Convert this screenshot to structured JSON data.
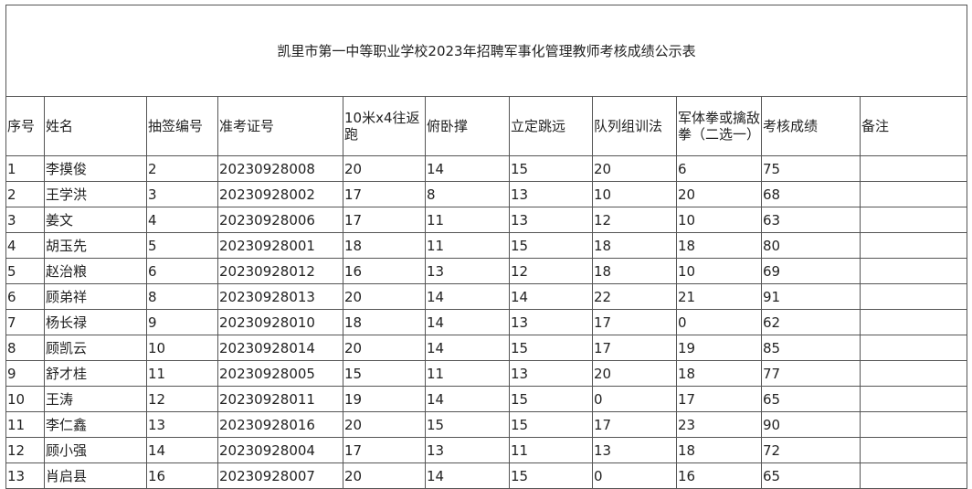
{
  "table": {
    "title": "凯里市第一中等职业学校2023年招聘军事化管理教师考核成绩公示表",
    "headers": [
      "序号",
      "姓名",
      "抽签编号",
      "准考证号",
      "10米x4往返跑",
      "俯卧撑",
      "立定跳远",
      "队列组训法",
      "军体拳或擒敌拳（二选一）",
      "考核成绩",
      "备注"
    ],
    "rows": [
      [
        "1",
        "李摸俊",
        "2",
        "20230928008",
        "20",
        "14",
        "15",
        "20",
        "6",
        "75"
      ],
      [
        "2",
        "王学洪",
        "3",
        "20230928002",
        "17",
        "8",
        "13",
        "10",
        "20",
        "68"
      ],
      [
        "3",
        "姜文",
        "4",
        "20230928006",
        "17",
        "11",
        "13",
        "12",
        "10",
        "63"
      ],
      [
        "4",
        "胡玉先",
        "5",
        "20230928001",
        "18",
        "11",
        "15",
        "18",
        "18",
        "80"
      ],
      [
        "5",
        "赵治粮",
        "6",
        "20230928012",
        "16",
        "13",
        "12",
        "18",
        "10",
        "69"
      ],
      [
        "6",
        "顾弟祥",
        "8",
        "20230928013",
        "20",
        "14",
        "14",
        "22",
        "21",
        "91"
      ],
      [
        "7",
        "杨长禄",
        "9",
        "20230928010",
        "18",
        "14",
        "13",
        "17",
        "0",
        "62"
      ],
      [
        "8",
        "顾凯云",
        "10",
        "20230928014",
        "20",
        "14",
        "15",
        "17",
        "19",
        "85"
      ],
      [
        "9",
        "舒才桂",
        "11",
        "20230928005",
        "15",
        "11",
        "13",
        "20",
        "18",
        "77"
      ],
      [
        "10",
        "王涛",
        "12",
        "20230928011",
        "19",
        "14",
        "15",
        "0",
        "17",
        "65"
      ],
      [
        "11",
        "李仁鑫",
        "13",
        "20230928016",
        "20",
        "15",
        "15",
        "17",
        "23",
        "90"
      ],
      [
        "12",
        "顾小强",
        "14",
        "20230928004",
        "17",
        "13",
        "11",
        "13",
        "18",
        "72"
      ],
      [
        "13",
        "肖启县",
        "16",
        "20230928007",
        "20",
        "14",
        "15",
        "0",
        "16",
        "65"
      ]
    ]
  }
}
